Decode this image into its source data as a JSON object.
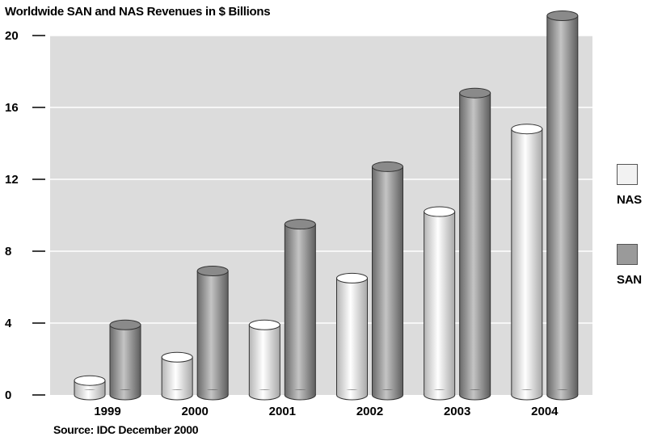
{
  "chart_data": {
    "type": "bar",
    "title": "Worldwide SAN and NAS Revenues in $ Billions",
    "source": "Source: IDC December 2000",
    "categories": [
      "1999",
      "2000",
      "2001",
      "2002",
      "2003",
      "2004"
    ],
    "series": [
      {
        "name": "NAS",
        "values": [
          0.8,
          2.1,
          3.9,
          6.5,
          10.2,
          14.8
        ],
        "color": "#f2f2f2"
      },
      {
        "name": "SAN",
        "values": [
          3.9,
          6.9,
          9.5,
          12.7,
          16.8,
          21.1
        ],
        "color": "#9a9a9a"
      }
    ],
    "yticks": [
      "0",
      "4",
      "8",
      "12",
      "16",
      "20"
    ],
    "ylim": [
      0,
      20
    ],
    "grid": true,
    "legend": "right",
    "background": "#dcdcdc"
  }
}
